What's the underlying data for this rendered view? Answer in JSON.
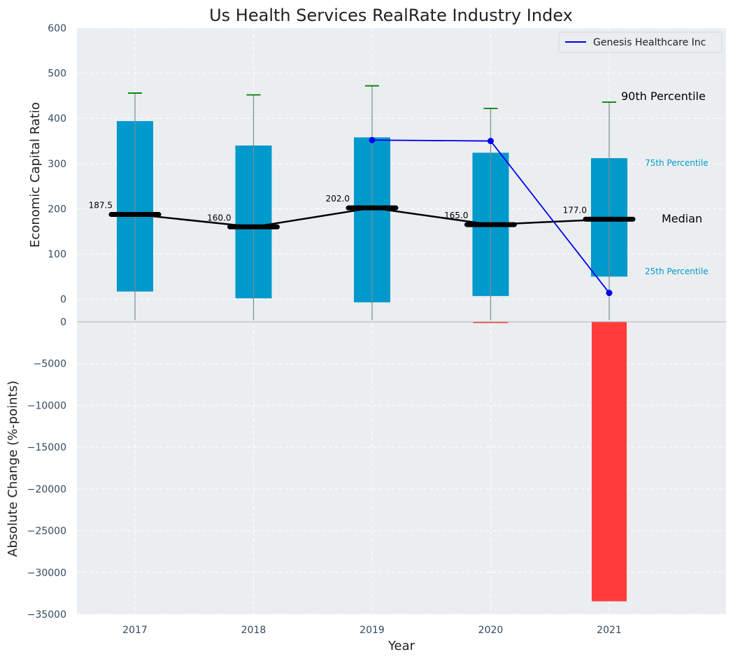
{
  "chart_data": {
    "title": "Us Health Services RealRate Industry Index",
    "xlabel": "Year",
    "categories": [
      "2017",
      "2018",
      "2019",
      "2020",
      "2021"
    ],
    "top": {
      "type": "box",
      "ylabel": "Economic Capital Ratio",
      "ylim": [
        -50,
        600
      ],
      "yticks": [
        0,
        100,
        200,
        300,
        400,
        500,
        600
      ],
      "p25": [
        17,
        2,
        -7,
        7,
        50
      ],
      "p75": [
        394,
        340,
        358,
        324,
        312
      ],
      "p90": [
        456,
        452,
        472,
        422,
        436
      ],
      "median": [
        187.5,
        160.0,
        202.0,
        165.0,
        177.0
      ],
      "median_labels": [
        "187.5",
        "160.0",
        "202.0",
        "165.0",
        "177.0"
      ],
      "company_series": {
        "name": "Genesis Healthcare Inc",
        "x": [
          "2019",
          "2020",
          "2021"
        ],
        "values": [
          352,
          350,
          14
        ],
        "color": "#0000ee"
      },
      "side_labels": {
        "p90": "90th Percentile",
        "p75": "75th Percentile",
        "median": "Median",
        "p25": "25th Percentile"
      },
      "box_color": "#0099cc",
      "whisker_cap_color": "#008000",
      "median_color": "#000000"
    },
    "bottom": {
      "type": "bar",
      "ylabel": "Absolute Change (%-points)",
      "ylim": [
        -35000,
        0
      ],
      "yticks": [
        0,
        -5000,
        -10000,
        -15000,
        -20000,
        -25000,
        -30000,
        -35000
      ],
      "ytick_labels": [
        "0",
        "−5000",
        "−10000",
        "−15000",
        "−20000",
        "−25000",
        "−30000",
        "−35000"
      ],
      "values": [
        null,
        null,
        null,
        -150,
        -33450
      ],
      "color": "#ff3b3b"
    },
    "grid": true,
    "legend_position": "top-right",
    "background": "#eaeef0"
  }
}
